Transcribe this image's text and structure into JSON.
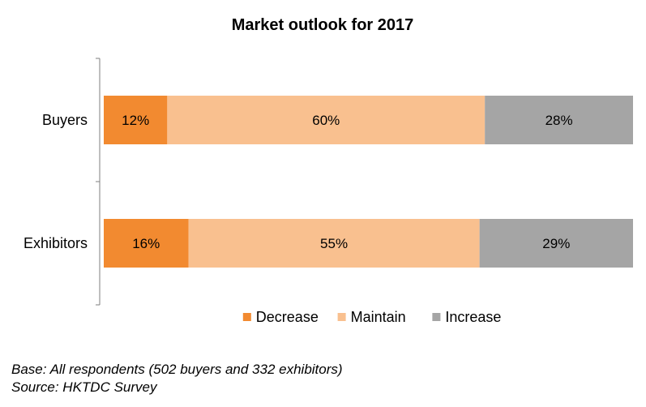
{
  "chart_data": {
    "type": "bar",
    "orientation": "horizontal",
    "stacked": true,
    "title": "Market outlook for 2017",
    "categories": [
      "Buyers",
      "Exhibitors"
    ],
    "series": [
      {
        "name": "Decrease",
        "color": "#f28a30",
        "values": [
          12,
          16
        ],
        "labels": [
          "12%",
          "16%"
        ]
      },
      {
        "name": "Maintain",
        "color": "#f9c08f",
        "values": [
          60,
          55
        ],
        "labels": [
          "60%",
          "55%"
        ]
      },
      {
        "name": "Increase",
        "color": "#a5a5a5",
        "values": [
          28,
          29
        ],
        "labels": [
          "28%",
          "29%"
        ]
      }
    ],
    "xlim": [
      0,
      100
    ],
    "unit": "%",
    "grid": false,
    "legend_position": "bottom"
  },
  "footnotes": {
    "base": "Base: All respondents (502 buyers and 332 exhibitors)",
    "source": "Source: HKTDC Survey"
  }
}
